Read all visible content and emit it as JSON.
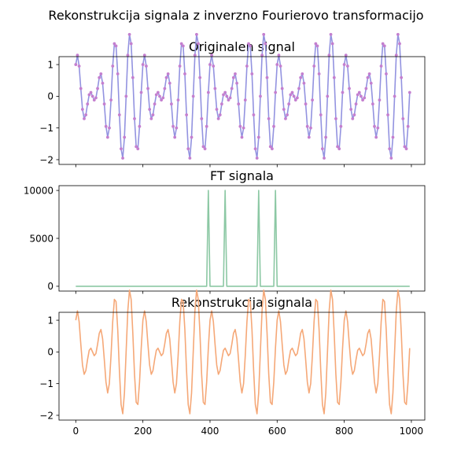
{
  "figure": {
    "title": "Rekonstrukcija signala z inverzno Fourierovo transformacijo"
  },
  "chart_data": [
    {
      "type": "line",
      "title": "Originalen signal",
      "xlabel": "",
      "ylabel": "",
      "xlim": [
        -50,
        1040
      ],
      "ylim": [
        -2.15,
        1.25
      ],
      "xticks": [
        0,
        200,
        400,
        600,
        800,
        1000
      ],
      "xtick_labels_visible": false,
      "yticks": [
        1,
        0,
        -1,
        -2
      ],
      "ytick_labels": [
        "1",
        "0",
        "−1",
        "−2"
      ],
      "grid": false,
      "markers": true,
      "series": [
        {
          "formula": "sin(2*pi*x/50) + cos(2*pi*x/40)",
          "x_range": [
            0,
            995
          ],
          "x_step": 5,
          "line_color": "#9393e0",
          "marker_color": "#c47fcf"
        }
      ]
    },
    {
      "type": "line",
      "title": "FT signala",
      "xlabel": "",
      "ylabel": "",
      "xlim": [
        -50,
        1040
      ],
      "ylim": [
        -500,
        10500
      ],
      "xticks": [
        0,
        200,
        400,
        600,
        800,
        1000
      ],
      "xtick_labels_visible": false,
      "yticks": [
        10000,
        5000,
        0
      ],
      "ytick_labels": [
        "10000",
        "5000",
        "0"
      ],
      "grid": false,
      "markers": false,
      "series": [
        {
          "x_range": [
            0,
            995
          ],
          "x_step": 5,
          "baseline": 0,
          "peaks": [
            {
              "x": 395,
              "y": 10000
            },
            {
              "x": 445,
              "y": 10000
            },
            {
              "x": 545,
              "y": 10000
            },
            {
              "x": 595,
              "y": 10000
            }
          ],
          "line_color": "#8cc8a4"
        }
      ]
    },
    {
      "type": "line",
      "title": "Rekonstrukcija signala",
      "xlabel": "",
      "ylabel": "",
      "xlim": [
        -50,
        1040
      ],
      "ylim": [
        -2.15,
        1.25
      ],
      "xticks": [
        0,
        200,
        400,
        600,
        800,
        1000
      ],
      "xtick_labels": [
        "0",
        "200",
        "400",
        "600",
        "800",
        "1000"
      ],
      "xtick_labels_visible": true,
      "yticks": [
        1,
        0,
        -1,
        -2
      ],
      "ytick_labels": [
        "1",
        "0",
        "−1",
        "−2"
      ],
      "grid": false,
      "markers": false,
      "series": [
        {
          "formula": "sin(2*pi*x/50) + cos(2*pi*x/40)",
          "x_range": [
            0,
            995
          ],
          "x_step": 5,
          "line_color": "#f5a878"
        }
      ]
    }
  ]
}
